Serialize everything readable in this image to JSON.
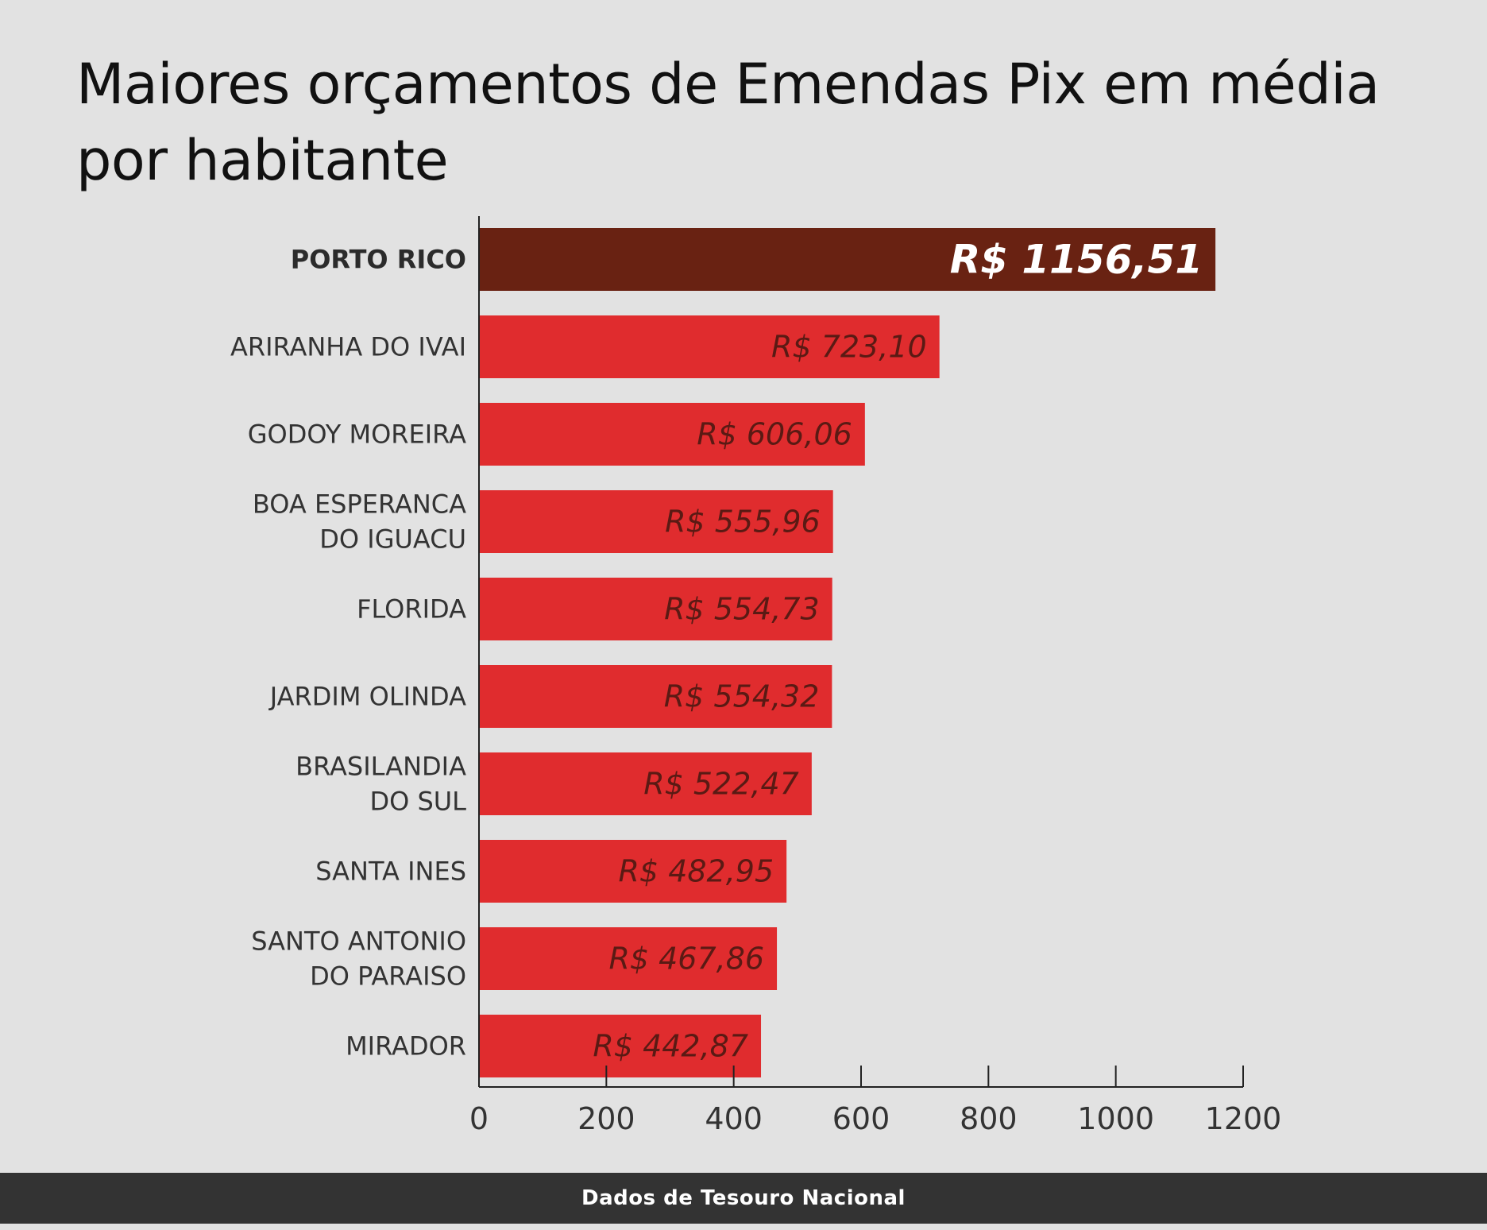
{
  "title": "Maiores orçamentos de Emendas Pix em média por habitante",
  "source": "Dados de Tesouro Nacional",
  "colors": {
    "background": "#e2e2e2",
    "bar": "#e02c2e",
    "highlight_bar": "#692212",
    "label_on_bar": "#5a1a14",
    "highlight_label": "#ffffff",
    "footer": "#333333"
  },
  "chart_data": {
    "type": "bar",
    "orientation": "horizontal",
    "categories": [
      "PORTO RICO",
      "ARIRANHA DO IVAI",
      "GODOY MOREIRA",
      "BOA ESPERANCA DO IGUACU",
      "FLORIDA",
      "JARDIM OLINDA",
      "BRASILANDIA DO SUL",
      "SANTA INES",
      "SANTO ANTONIO DO PARAISO",
      "MIRADOR"
    ],
    "category_lines": [
      [
        "PORTO RICO"
      ],
      [
        "ARIRANHA DO IVAI"
      ],
      [
        "GODOY MOREIRA"
      ],
      [
        "BOA ESPERANCA",
        "DO IGUACU"
      ],
      [
        "FLORIDA"
      ],
      [
        "JARDIM OLINDA"
      ],
      [
        "BRASILANDIA",
        "DO SUL"
      ],
      [
        "SANTA INES"
      ],
      [
        "SANTO ANTONIO",
        "DO PARAISO"
      ],
      [
        "MIRADOR"
      ]
    ],
    "values": [
      1156.51,
      723.1,
      606.06,
      555.96,
      554.73,
      554.32,
      522.47,
      482.95,
      467.86,
      442.87
    ],
    "value_labels": [
      "R$ 1156,51",
      "R$ 723,10",
      "R$ 606,06",
      "R$ 555,96",
      "R$ 554,73",
      "R$ 554,32",
      "R$ 522,47",
      "R$ 482,95",
      "R$ 467,86",
      "R$ 442,87"
    ],
    "highlight_index": 0,
    "xlim": [
      0,
      1200
    ],
    "xticks": [
      0,
      200,
      400,
      600,
      800,
      1000,
      1200
    ],
    "xlabel": "",
    "ylabel": "",
    "grid": false,
    "legend": "none"
  }
}
